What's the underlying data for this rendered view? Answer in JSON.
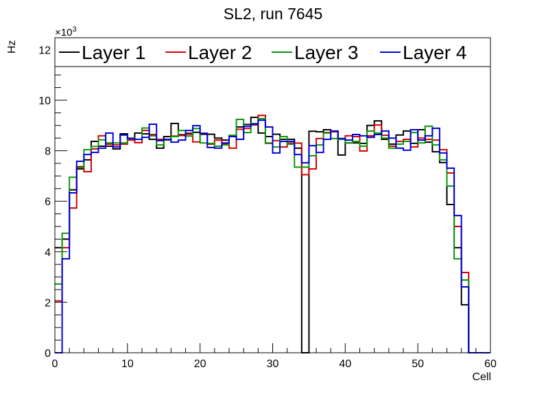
{
  "chart_data": {
    "type": "line",
    "style": "step-histogram",
    "title": "SL2, run 7645",
    "xlabel": "Cell",
    "ylabel": "Hz",
    "y_multiplier": "×10",
    "y_multiplier_exp": "3",
    "xlim": [
      0,
      60
    ],
    "ylim": [
      0,
      12.4
    ],
    "x_ticks": [
      "0",
      "10",
      "20",
      "30",
      "40",
      "50",
      "60"
    ],
    "y_ticks": [
      "0",
      "2",
      "4",
      "6",
      "8",
      "10",
      "12"
    ],
    "grid": false,
    "legend_placement": "top",
    "x_bins": "cells 0-59, width 1",
    "series": [
      {
        "name": "Layer 1",
        "color": "#000000",
        "values": [
          4.16,
          4.5,
          6.45,
          7.28,
          7.64,
          8.37,
          8.18,
          8.18,
          8.07,
          8.67,
          8.48,
          8.7,
          8.67,
          8.45,
          8.1,
          8.56,
          9.08,
          8.63,
          8.69,
          8.73,
          8.65,
          8.65,
          8.5,
          8.42,
          8.58,
          8.94,
          9.04,
          9.32,
          8.7,
          8.56,
          8.65,
          8.45,
          8.45,
          8.1,
          0,
          8.77,
          8.75,
          8.83,
          8.75,
          7.83,
          8.31,
          8.31,
          8.29,
          9.0,
          9.18,
          8.45,
          8.26,
          8.62,
          8.78,
          8.29,
          8.83,
          8.34,
          7.96,
          7.53,
          5.87,
          4.16,
          1.9,
          0,
          0,
          0
        ]
      },
      {
        "name": "Layer 2",
        "color": "#d40000",
        "values": [
          2.05,
          4.16,
          5.73,
          7.37,
          7.17,
          8.07,
          8.59,
          8.26,
          8.23,
          8.26,
          8.42,
          8.32,
          8.8,
          8.64,
          8.45,
          8.42,
          8.58,
          8.6,
          8.65,
          8.35,
          8.69,
          8.26,
          8.42,
          8.26,
          8.1,
          8.85,
          8.88,
          9.02,
          9.4,
          8.29,
          8.4,
          8.15,
          8.3,
          8.3,
          7.05,
          7.28,
          8.48,
          8.72,
          8.75,
          8.48,
          8.59,
          8.56,
          7.99,
          8.59,
          9.02,
          8.61,
          8.18,
          8.37,
          8.45,
          8.15,
          8.5,
          8.45,
          8.42,
          8.04,
          7.12,
          5.0,
          3.18,
          0,
          0,
          0
        ]
      },
      {
        "name": "Layer 3",
        "color": "#0a960a",
        "values": [
          2.72,
          4.73,
          6.95,
          7.33,
          8.04,
          8.17,
          8.43,
          8.31,
          8.31,
          8.31,
          8.5,
          8.45,
          8.9,
          8.59,
          8.23,
          8.43,
          8.56,
          8.8,
          8.58,
          8.88,
          8.31,
          8.29,
          8.18,
          8.23,
          8.61,
          9.24,
          8.72,
          9.08,
          9.27,
          8.31,
          8.15,
          8.56,
          8.26,
          7.35,
          7.35,
          7.8,
          8.23,
          8.7,
          8.48,
          8.45,
          8.31,
          8.37,
          8.18,
          8.78,
          8.7,
          8.5,
          8.1,
          8.26,
          8.37,
          8.72,
          8.31,
          8.97,
          8.23,
          7.64,
          6.6,
          3.72,
          2.88,
          0,
          0,
          0
        ]
      },
      {
        "name": "Layer 4",
        "color": "#0000d8",
        "values": [
          0,
          3.72,
          6.33,
          7.58,
          7.85,
          7.93,
          8.1,
          8.7,
          8.15,
          8.62,
          8.48,
          8.45,
          8.53,
          9.05,
          8.4,
          8.45,
          8.34,
          8.42,
          8.8,
          8.99,
          8.69,
          8.13,
          8.1,
          8.31,
          8.56,
          8.45,
          8.96,
          9.05,
          9.21,
          8.94,
          7.91,
          8.37,
          8.37,
          7.85,
          7.52,
          8.2,
          7.93,
          8.45,
          8.78,
          8.48,
          8.42,
          8.64,
          8.59,
          8.53,
          8.64,
          8.78,
          8.5,
          8.1,
          8.02,
          8.83,
          8.42,
          8.59,
          8.89,
          7.91,
          7.31,
          5.43,
          2.61,
          0,
          0,
          0
        ]
      }
    ]
  }
}
